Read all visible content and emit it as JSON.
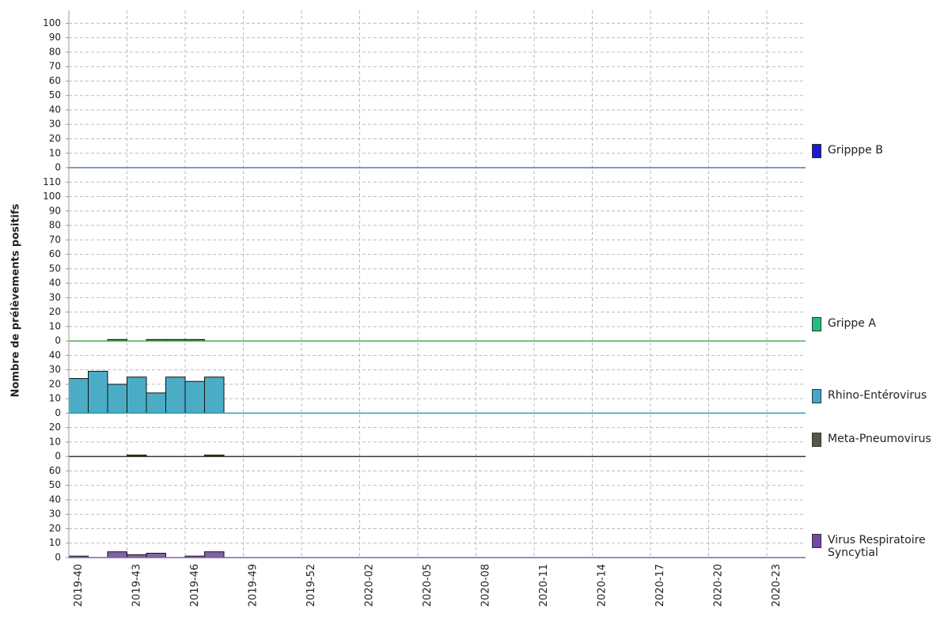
{
  "chart_data": {
    "type": "bar",
    "y_label": "Nombre de prélèvements positifs",
    "categories": [
      "2019-40",
      null,
      null,
      "2019-43",
      null,
      null,
      "2019-46",
      null,
      null,
      "2019-49",
      null,
      null,
      "2019-52",
      null,
      null,
      "2020-02",
      null,
      null,
      "2020-05",
      null,
      null,
      "2020-08",
      null,
      null,
      "2020-11",
      null,
      null,
      "2020-14",
      null,
      null,
      "2020-17",
      null,
      null,
      "2020-20",
      null,
      null,
      "2020-23",
      null
    ],
    "grid": true,
    "series": [
      {
        "name": "Gripppe B",
        "color": "#1a1ad6",
        "bar_color": "#1a1ad6",
        "line_color": "#5a7aa8",
        "ylim": [
          0,
          109
        ],
        "yticks": [
          0,
          10,
          20,
          30,
          40,
          50,
          60,
          70,
          80,
          90,
          100
        ],
        "values": [
          0,
          0,
          0,
          0,
          0,
          0,
          0,
          0,
          null,
          null,
          null,
          null,
          null,
          null,
          null,
          null,
          null,
          null,
          null,
          null,
          null,
          null,
          null,
          null,
          null,
          null,
          null,
          null,
          null,
          null,
          null,
          null,
          null,
          null,
          null,
          null,
          null,
          null
        ]
      },
      {
        "name": "Grippe A",
        "color": "#1fc07f",
        "bar_color": "#2e6b3a",
        "line_color": "#4caf50",
        "ylim": [
          0,
          120
        ],
        "yticks": [
          0,
          10,
          20,
          30,
          40,
          50,
          60,
          70,
          80,
          90,
          100,
          110
        ],
        "values": [
          0,
          0,
          1,
          0,
          1,
          1,
          1,
          0,
          null,
          null,
          null,
          null,
          null,
          null,
          null,
          null,
          null,
          null,
          null,
          null,
          null,
          null,
          null,
          null,
          null,
          null,
          null,
          null,
          null,
          null,
          null,
          null,
          null,
          null,
          null,
          null,
          null,
          null
        ]
      },
      {
        "name": "Rhino-Entérovirus",
        "color": "#3ea9cf",
        "bar_color": "#4bacc6",
        "line_color": "#2ea0b4",
        "ylim": [
          0,
          50
        ],
        "yticks": [
          0,
          10,
          20,
          30,
          40
        ],
        "values": [
          24,
          29,
          20,
          25,
          14,
          25,
          22,
          25,
          null,
          null,
          null,
          null,
          null,
          null,
          null,
          null,
          null,
          null,
          null,
          null,
          null,
          null,
          null,
          null,
          null,
          null,
          null,
          null,
          null,
          null,
          null,
          null,
          null,
          null,
          null,
          null,
          null,
          null
        ]
      },
      {
        "name": "Meta-Pneumovirus",
        "color": "#4f5a45",
        "bar_color": "#3b4a30",
        "line_color": "#3a3a28",
        "ylim": [
          0,
          30
        ],
        "yticks": [
          0,
          10,
          20
        ],
        "values": [
          0,
          0,
          0,
          1,
          0,
          0,
          0,
          1,
          null,
          null,
          null,
          null,
          null,
          null,
          null,
          null,
          null,
          null,
          null,
          null,
          null,
          null,
          null,
          null,
          null,
          null,
          null,
          null,
          null,
          null,
          null,
          null,
          null,
          null,
          null,
          null,
          null,
          null
        ]
      },
      {
        "name": "Virus Respiratoire Syncytial",
        "color": "#7446a6",
        "bar_color": "#8064a2",
        "line_color": "#8064a2",
        "ylim": [
          0,
          70
        ],
        "yticks": [
          0,
          10,
          20,
          30,
          40,
          50,
          60
        ],
        "values": [
          1,
          0,
          4,
          2,
          3,
          0,
          1,
          4,
          null,
          null,
          null,
          null,
          null,
          null,
          null,
          null,
          null,
          null,
          null,
          null,
          null,
          null,
          null,
          null,
          null,
          null,
          null,
          null,
          null,
          null,
          null,
          null,
          null,
          null,
          null,
          null,
          null,
          null
        ]
      }
    ]
  }
}
